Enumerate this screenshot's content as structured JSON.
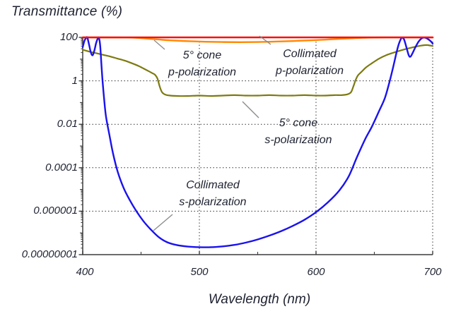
{
  "title": "Transmittance (%)",
  "xlabel": "Wavelength (nm)",
  "chart_data": {
    "type": "line",
    "title": "Transmittance (%)",
    "xlabel": "Wavelength (nm)",
    "x_axis": {
      "min": 400,
      "max": 700,
      "major_ticks": [
        400,
        500,
        600,
        700
      ],
      "minor_ticks": [
        450,
        550,
        650
      ],
      "tick_labels": [
        "400",
        "500",
        "600",
        "700"
      ]
    },
    "y_axis": {
      "scale": "log",
      "min": 1e-08,
      "max": 100,
      "labeled_values": [
        100,
        1,
        0.01,
        0.0001,
        1e-06,
        1e-08
      ],
      "tick_labels": [
        "100",
        "1",
        "0.01",
        "0.0001",
        "0.000001",
        "0.00000001"
      ],
      "unlabeled_decades": [
        10,
        0.1,
        0.001,
        1e-05,
        1e-07
      ]
    },
    "grid": {
      "h_values": [
        1,
        0.01,
        0.0001,
        1e-06
      ],
      "v_values": [
        500,
        600,
        700
      ],
      "style": "dotted"
    },
    "series": [
      {
        "name": "5° cone p-polarization",
        "slug": "cone-p-polarization",
        "color": "#ff8800",
        "width": 2.4,
        "points": [
          [
            400,
            99.3
          ],
          [
            420,
            99
          ],
          [
            435,
            98.5
          ],
          [
            445,
            96
          ],
          [
            455,
            88
          ],
          [
            465,
            80
          ],
          [
            475,
            73
          ],
          [
            490,
            67
          ],
          [
            505,
            63
          ],
          [
            520,
            61
          ],
          [
            535,
            60
          ],
          [
            550,
            61
          ],
          [
            565,
            64
          ],
          [
            580,
            68
          ],
          [
            595,
            73
          ],
          [
            608,
            79
          ],
          [
            620,
            86
          ],
          [
            632,
            92
          ],
          [
            644,
            97
          ],
          [
            656,
            99
          ],
          [
            670,
            99.3
          ],
          [
            700,
            99.4
          ]
        ]
      },
      {
        "name": "5° cone s-polarization",
        "slug": "cone-s-polarization",
        "color": "#7d7a10",
        "width": 2.2,
        "points": [
          [
            400,
            27
          ],
          [
            406,
            22
          ],
          [
            412,
            18.5
          ],
          [
            418,
            15.5
          ],
          [
            424,
            13
          ],
          [
            430,
            10.5
          ],
          [
            436,
            8.5
          ],
          [
            442,
            6.5
          ],
          [
            448,
            4.8
          ],
          [
            453,
            3.5
          ],
          [
            457,
            2.7
          ],
          [
            460,
            2.2
          ],
          [
            462,
            1.9
          ],
          [
            464,
            1.3
          ],
          [
            466,
            0.55
          ],
          [
            468,
            0.3
          ],
          [
            471,
            0.23
          ],
          [
            475,
            0.21
          ],
          [
            482,
            0.2
          ],
          [
            490,
            0.2
          ],
          [
            500,
            0.21
          ],
          [
            510,
            0.2
          ],
          [
            520,
            0.21
          ],
          [
            530,
            0.22
          ],
          [
            540,
            0.21
          ],
          [
            550,
            0.21
          ],
          [
            560,
            0.22
          ],
          [
            570,
            0.21
          ],
          [
            580,
            0.21
          ],
          [
            590,
            0.22
          ],
          [
            600,
            0.21
          ],
          [
            608,
            0.21
          ],
          [
            616,
            0.22
          ],
          [
            622,
            0.22
          ],
          [
            627,
            0.24
          ],
          [
            630,
            0.3
          ],
          [
            632,
            0.55
          ],
          [
            634,
            1.1
          ],
          [
            636,
            1.8
          ],
          [
            639,
            2.6
          ],
          [
            643,
            4.2
          ],
          [
            648,
            6.5
          ],
          [
            654,
            10.5
          ],
          [
            660,
            15
          ],
          [
            666,
            19.5
          ],
          [
            672,
            24.5
          ],
          [
            678,
            30
          ],
          [
            684,
            36
          ],
          [
            689,
            41
          ],
          [
            693,
            44
          ],
          [
            696,
            44
          ],
          [
            700,
            40
          ]
        ]
      },
      {
        "name": "Collimated s-polarization",
        "slug": "collimated-s-polarization",
        "color": "#1a12ee",
        "width": 2.4,
        "points": [
          [
            400,
            35
          ],
          [
            401.5,
            70
          ],
          [
            403,
            95
          ],
          [
            404,
            97
          ],
          [
            405.5,
            45
          ],
          [
            407,
            20
          ],
          [
            408.5,
            15
          ],
          [
            410,
            25
          ],
          [
            411.5,
            55
          ],
          [
            413,
            90
          ],
          [
            414,
            92
          ],
          [
            415,
            40
          ],
          [
            416,
            6
          ],
          [
            417,
            1
          ],
          [
            418.5,
            0.12
          ],
          [
            420,
            0.022
          ],
          [
            423,
            0.003
          ],
          [
            426,
            0.00045
          ],
          [
            430,
            6.5e-05
          ],
          [
            435,
            1.2e-05
          ],
          [
            440,
            3.5e-06
          ],
          [
            446,
            1e-06
          ],
          [
            452,
            3.5e-07
          ],
          [
            458,
            1.5e-07
          ],
          [
            465,
            6.5e-08
          ],
          [
            472,
            3.8e-08
          ],
          [
            480,
            2.8e-08
          ],
          [
            490,
            2.35e-08
          ],
          [
            500,
            2.2e-08
          ],
          [
            510,
            2.2e-08
          ],
          [
            520,
            2.4e-08
          ],
          [
            530,
            2.8e-08
          ],
          [
            540,
            3.6e-08
          ],
          [
            550,
            5e-08
          ],
          [
            560,
            7.5e-08
          ],
          [
            570,
            1.2e-07
          ],
          [
            580,
            2.1e-07
          ],
          [
            590,
            4e-07
          ],
          [
            600,
            9e-07
          ],
          [
            610,
            2.5e-06
          ],
          [
            620,
            9e-06
          ],
          [
            628,
            4e-05
          ],
          [
            635,
            0.0003
          ],
          [
            642,
            0.002
          ],
          [
            648,
            0.008
          ],
          [
            654,
            0.04
          ],
          [
            659,
            0.16
          ],
          [
            663,
            0.9
          ],
          [
            666,
            4
          ],
          [
            669,
            20
          ],
          [
            671,
            50
          ],
          [
            673,
            90
          ],
          [
            674,
            97
          ],
          [
            675.5,
            80
          ],
          [
            677.5,
            35
          ],
          [
            679.5,
            15
          ],
          [
            681,
            13
          ],
          [
            683,
            20
          ],
          [
            685.5,
            38
          ],
          [
            688,
            65
          ],
          [
            690.5,
            90
          ],
          [
            692.5,
            98
          ],
          [
            694.5,
            93
          ],
          [
            696.5,
            80
          ],
          [
            698.5,
            65
          ],
          [
            700,
            52
          ]
        ]
      },
      {
        "name": "Collimated p-polarization",
        "slug": "collimated-p-polarization",
        "color": "#ff0d0d",
        "width": 2.6,
        "points": [
          [
            400,
            100
          ],
          [
            700,
            100
          ]
        ]
      }
    ],
    "annotations": [
      {
        "line1": "5° cone",
        "line2": "p-polarization",
        "leader": [
          [
            218,
            57
          ],
          [
            233,
            70
          ]
        ]
      },
      {
        "line1": "Collimated",
        "line2": "p-polarization",
        "leader": [
          [
            367,
            51
          ],
          [
            383,
            63
          ]
        ]
      },
      {
        "line1": "5° cone",
        "line2": "s-polarization",
        "leader": [
          [
            343,
            144
          ],
          [
            366,
            167
          ]
        ]
      },
      {
        "line1": "Collimated",
        "line2": "s-polarization",
        "leader": [
          [
            244,
            304
          ],
          [
            217,
            327
          ]
        ]
      }
    ],
    "colors": {
      "axis": "#3c3c3c",
      "grid": "#222222",
      "leader": "#8a8a8a",
      "text": "#1e2230"
    }
  }
}
